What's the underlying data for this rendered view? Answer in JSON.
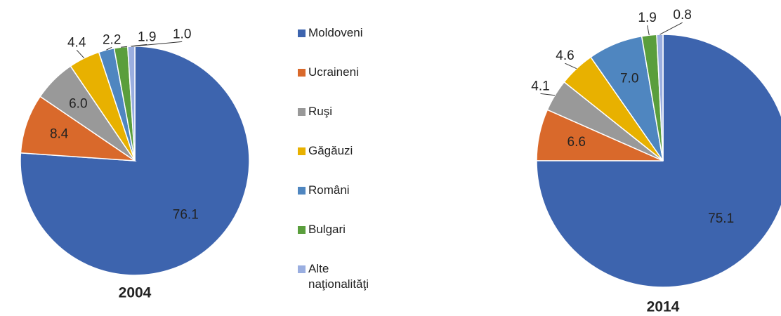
{
  "legend": {
    "labels": [
      "Moldoveni",
      "Ucraineni",
      "Ruşi",
      "Găgăuzi",
      "Români",
      "Bulgari",
      "Alte naţionalităţi"
    ],
    "colors": [
      "#3d64ae",
      "#d9692b",
      "#999999",
      "#e8b100",
      "#4f86c0",
      "#5a9e3c",
      "#9aaee0"
    ]
  },
  "chart_data": [
    {
      "type": "pie",
      "title": "2004",
      "values": [
        76.1,
        8.4,
        6,
        4.4,
        2.2,
        1.9,
        1
      ],
      "value_labels": [
        "76.1",
        "8.4",
        "6.0",
        "4.4",
        "2.2",
        "1.9",
        "1.0"
      ]
    },
    {
      "type": "pie",
      "title": "2014",
      "values": [
        75.1,
        6.6,
        4.1,
        4.6,
        7,
        1.9,
        0.8
      ],
      "value_labels": [
        "75.1",
        "6.6",
        "4.1",
        "4.6",
        "7.0",
        "1.9",
        "0.8"
      ]
    }
  ]
}
